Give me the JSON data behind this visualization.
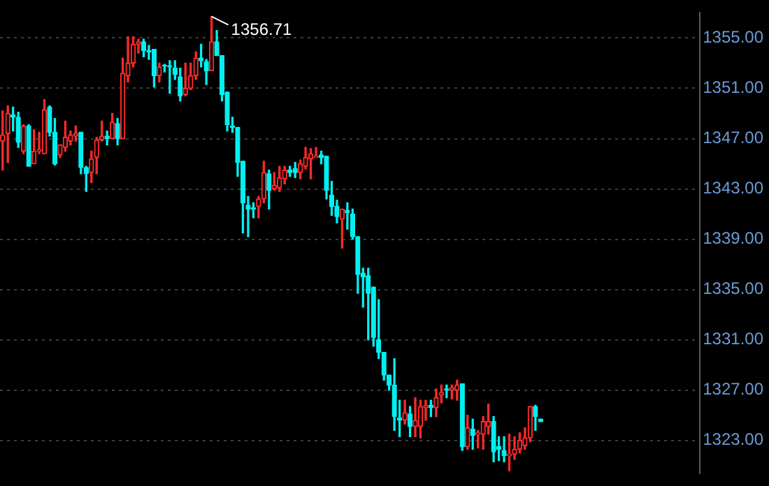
{
  "chart_data": {
    "type": "candlestick",
    "categories": [
      null,
      null,
      null,
      null,
      null,
      null,
      null,
      null,
      null,
      null,
      null,
      null,
      null,
      null,
      null,
      null,
      null,
      null,
      null,
      null,
      null,
      null,
      null,
      null,
      null,
      null,
      null,
      null,
      null,
      null,
      null,
      null,
      null,
      null,
      null,
      null,
      null,
      null,
      null,
      null,
      null,
      null,
      null,
      null,
      null,
      null,
      null,
      null,
      null,
      null,
      null,
      null,
      null,
      null,
      null,
      null,
      null,
      null,
      null,
      null,
      null,
      null,
      null,
      null,
      null,
      null,
      null,
      null,
      null,
      null,
      null,
      null,
      null,
      null,
      null,
      null,
      null,
      null,
      null,
      null,
      null,
      null,
      null,
      null,
      null,
      null,
      null,
      null,
      null,
      null,
      null,
      null,
      null,
      null,
      null,
      null,
      null,
      null,
      null,
      null,
      null,
      null,
      null,
      null,
      null,
      null,
      null,
      null,
      null,
      null,
      null,
      null,
      null,
      null,
      null,
      null,
      null,
      null,
      null,
      null,
      null,
      null,
      null,
      null,
      null,
      null,
      null,
      null,
      null,
      null,
      null,
      null,
      null,
      null
    ],
    "ohlc": [
      [
        1346.8,
        1349.2,
        1344.5,
        1347.3
      ],
      [
        1347.4,
        1349.6,
        1345.1,
        1349.0
      ],
      [
        1348.9,
        1349.5,
        1347.6,
        1348.7
      ],
      [
        1348.7,
        1349.1,
        1346.3,
        1346.7
      ],
      [
        1346.0,
        1348.1,
        1345.8,
        1348.0
      ],
      [
        1348.0,
        1348.1,
        1344.8,
        1344.8
      ],
      [
        1345.0,
        1347.7,
        1345.0,
        1346.0
      ],
      [
        1346.0,
        1347.5,
        1345.8,
        1346.1
      ],
      [
        1345.8,
        1350.1,
        1345.8,
        1349.3
      ],
      [
        1349.5,
        1349.6,
        1347.2,
        1347.5
      ],
      [
        1347.5,
        1348.6,
        1344.9,
        1345.0
      ],
      [
        1345.7,
        1346.5,
        1345.5,
        1346.5
      ],
      [
        1346.3,
        1348.4,
        1346.0,
        1347.1
      ],
      [
        1346.8,
        1347.6,
        1346.5,
        1347.3
      ],
      [
        1347.2,
        1348.0,
        1346.8,
        1347.4
      ],
      [
        1347.5,
        1347.5,
        1344.2,
        1344.7
      ],
      [
        1344.7,
        1344.8,
        1342.8,
        1344.2
      ],
      [
        1344.3,
        1346.0,
        1343.5,
        1345.4
      ],
      [
        1345.5,
        1347.1,
        1344.2,
        1346.9
      ],
      [
        1346.9,
        1348.4,
        1346.8,
        1347.2
      ],
      [
        1347.2,
        1347.6,
        1346.5,
        1347.0
      ],
      [
        1347.0,
        1349.0,
        1347.0,
        1348.3
      ],
      [
        1348.2,
        1348.6,
        1346.5,
        1347.0
      ],
      [
        1347.0,
        1353.4,
        1347.0,
        1352.2
      ],
      [
        1352.0,
        1355.1,
        1351.5,
        1353.0
      ],
      [
        1353.0,
        1355.1,
        1352.7,
        1354.5
      ],
      [
        1354.5,
        1354.9,
        1353.8,
        1354.7
      ],
      [
        1354.7,
        1354.9,
        1353.5,
        1354.0
      ],
      [
        1354.0,
        1354.4,
        1353.3,
        1353.9
      ],
      [
        1354.1,
        1354.1,
        1351.1,
        1352.0
      ],
      [
        1352.0,
        1353.0,
        1351.5,
        1352.7
      ],
      [
        1352.8,
        1352.9,
        1352.3,
        1352.8
      ],
      [
        1352.8,
        1353.2,
        1350.6,
        1352.7
      ],
      [
        1352.6,
        1353.2,
        1351.7,
        1352.1
      ],
      [
        1351.9,
        1352.6,
        1350.0,
        1350.4
      ],
      [
        1350.5,
        1353.0,
        1350.4,
        1351.0
      ],
      [
        1351.0,
        1353.0,
        1350.9,
        1352.0
      ],
      [
        1352.0,
        1353.9,
        1351.7,
        1353.4
      ],
      [
        1353.4,
        1354.5,
        1352.7,
        1353.2
      ],
      [
        1353.1,
        1353.3,
        1351.3,
        1352.4
      ],
      [
        1352.4,
        1356.71,
        1352.4,
        1354.7
      ],
      [
        1354.7,
        1355.6,
        1353.6,
        1353.6
      ],
      [
        1353.6,
        1353.6,
        1350.0,
        1350.5
      ],
      [
        1350.7,
        1350.7,
        1347.6,
        1348.1
      ],
      [
        1348.0,
        1348.7,
        1347.5,
        1347.9
      ],
      [
        1347.9,
        1347.9,
        1344.0,
        1345.1
      ],
      [
        1345.2,
        1345.2,
        1339.5,
        1341.9
      ],
      [
        1341.7,
        1342.4,
        1339.2,
        1341.4
      ],
      [
        1341.5,
        1341.9,
        1340.7,
        1341.4
      ],
      [
        1341.6,
        1342.4,
        1340.7,
        1342.2
      ],
      [
        1342.2,
        1345.2,
        1341.9,
        1344.3
      ],
      [
        1344.2,
        1344.5,
        1341.4,
        1342.9
      ],
      [
        1343.0,
        1344.3,
        1342.9,
        1343.3
      ],
      [
        1343.1,
        1344.8,
        1342.8,
        1343.9
      ],
      [
        1343.8,
        1344.8,
        1343.4,
        1344.5
      ],
      [
        1344.5,
        1344.8,
        1344.0,
        1344.3
      ],
      [
        1344.6,
        1345.1,
        1343.9,
        1344.3
      ],
      [
        1344.3,
        1345.3,
        1343.8,
        1345.0
      ],
      [
        1344.8,
        1346.3,
        1344.6,
        1345.5
      ],
      [
        1345.4,
        1346.2,
        1343.8,
        1345.8
      ],
      [
        1345.5,
        1346.3,
        1345.5,
        1345.6
      ],
      [
        1345.7,
        1346.0,
        1345.0,
        1345.5
      ],
      [
        1345.6,
        1345.6,
        1342.2,
        1342.9
      ],
      [
        1342.5,
        1343.6,
        1340.9,
        1341.6
      ],
      [
        1341.6,
        1342.1,
        1340.3,
        1340.8
      ],
      [
        1340.6,
        1341.4,
        1338.3,
        1341.4
      ],
      [
        1341.3,
        1341.9,
        1339.8,
        1341.1
      ],
      [
        1341.0,
        1341.4,
        1339.0,
        1339.2
      ],
      [
        1339.2,
        1339.2,
        1334.7,
        1336.2
      ],
      [
        1336.3,
        1336.7,
        1333.6,
        1336.0
      ],
      [
        1336.1,
        1336.7,
        1331.0,
        1334.7
      ],
      [
        1335.2,
        1335.2,
        1330.5,
        1331.2
      ],
      [
        1331.0,
        1334.2,
        1329.5,
        1330.0
      ],
      [
        1330.0,
        1330.0,
        1327.8,
        1328.2
      ],
      [
        1328.2,
        1328.2,
        1327.0,
        1327.4
      ],
      [
        1327.4,
        1329.5,
        1323.8,
        1324.9
      ],
      [
        1324.8,
        1326.2,
        1323.3,
        1324.6
      ],
      [
        1324.6,
        1326.2,
        1324.3,
        1325.2
      ],
      [
        1325.1,
        1325.7,
        1323.3,
        1324.1
      ],
      [
        1324.1,
        1326.4,
        1323.3,
        1324.6
      ],
      [
        1324.1,
        1326.2,
        1323.2,
        1325.7
      ],
      [
        1325.6,
        1326.2,
        1324.6,
        1325.8
      ],
      [
        1325.8,
        1326.2,
        1324.9,
        1325.6
      ],
      [
        1325.6,
        1327.1,
        1324.9,
        1326.4
      ],
      [
        1326.6,
        1327.4,
        1326.0,
        1326.8
      ],
      [
        1327.1,
        1327.4,
        1326.4,
        1327.0
      ],
      [
        1327.0,
        1327.4,
        1326.3,
        1327.2
      ],
      [
        1327.0,
        1327.8,
        1326.2,
        1327.4
      ],
      [
        1327.5,
        1327.5,
        1322.2,
        1322.5
      ],
      [
        1322.5,
        1325.0,
        1322.3,
        1324.0
      ],
      [
        1323.9,
        1324.7,
        1322.3,
        1323.4
      ],
      [
        1323.5,
        1323.8,
        1322.4,
        1323.6
      ],
      [
        1323.5,
        1324.9,
        1322.3,
        1324.5
      ],
      [
        1324.1,
        1325.9,
        1323.5,
        1324.5
      ],
      [
        1324.5,
        1324.9,
        1321.3,
        1322.1
      ],
      [
        1322.5,
        1323.3,
        1321.4,
        1322.3
      ],
      [
        1322.2,
        1323.3,
        1321.3,
        1321.8
      ],
      [
        1321.8,
        1323.5,
        1320.6,
        1321.9
      ],
      [
        1321.9,
        1323.3,
        1321.5,
        1322.3
      ],
      [
        1322.3,
        1323.6,
        1322.0,
        1323.0
      ],
      [
        1322.6,
        1324.0,
        1322.3,
        1323.2
      ],
      [
        1323.2,
        1325.7,
        1322.9,
        1325.7
      ],
      [
        1325.7,
        1325.8,
        1323.8,
        1324.9
      ],
      [
        1324.7,
        1324.7,
        1324.5,
        1324.5
      ],
      null,
      null,
      null,
      null,
      null,
      null,
      null,
      null,
      null,
      null,
      null,
      null,
      null,
      null,
      null,
      null,
      null,
      null,
      null,
      null,
      null,
      null,
      null,
      null,
      null,
      null,
      null,
      null,
      null,
      null
    ],
    "colors": [
      "#ff2a2a",
      "#ff2a2a",
      "#00f0f0",
      "#00f0f0",
      "#ff2a2a",
      "#00f0f0",
      "#ff2a2a",
      "#ff2a2a",
      "#ff2a2a",
      "#00f0f0",
      "#00f0f0",
      "#ff2a2a",
      "#ff2a2a",
      "#ff2a2a",
      "#ff2a2a",
      "#00f0f0",
      "#00f0f0",
      "#ff2a2a",
      "#ff2a2a",
      "#ff2a2a",
      "#00f0f0",
      "#ff2a2a",
      "#00f0f0",
      "#ff2a2a",
      "#ff2a2a",
      "#ff2a2a",
      "#ff2a2a",
      "#00f0f0",
      "#00f0f0",
      "#00f0f0",
      "#ff2a2a",
      "#00f0f0",
      "#00f0f0",
      "#00f0f0",
      "#00f0f0",
      "#ff2a2a",
      "#ff2a2a",
      "#ff2a2a",
      "#00f0f0",
      "#00f0f0",
      "#ff2a2a",
      "#00f0f0",
      "#00f0f0",
      "#00f0f0",
      "#00f0f0",
      "#00f0f0",
      "#00f0f0",
      "#00f0f0",
      "#00f0f0",
      "#ff2a2a",
      "#ff2a2a",
      "#00f0f0",
      "#ff2a2a",
      "#ff2a2a",
      "#ff2a2a",
      "#00f0f0",
      "#00f0f0",
      "#ff2a2a",
      "#ff2a2a",
      "#ff2a2a",
      "#ff2a2a",
      "#00f0f0",
      "#00f0f0",
      "#00f0f0",
      "#00f0f0",
      "#ff2a2a",
      "#00f0f0",
      "#00f0f0",
      "#00f0f0",
      "#00f0f0",
      "#00f0f0",
      "#00f0f0",
      "#00f0f0",
      "#00f0f0",
      "#00f0f0",
      "#00f0f0",
      "#00f0f0",
      "#ff2a2a",
      "#00f0f0",
      "#ff2a2a",
      "#ff2a2a",
      "#ff2a2a",
      "#00f0f0",
      "#ff2a2a",
      "#ff2a2a",
      "#00f0f0",
      "#ff2a2a",
      "#ff2a2a",
      "#00f0f0",
      "#ff2a2a",
      "#00f0f0",
      "#ff2a2a",
      "#ff2a2a",
      "#ff2a2a",
      "#00f0f0",
      "#00f0f0",
      "#00f0f0",
      "#ff2a2a",
      "#ff2a2a",
      "#ff2a2a",
      "#ff2a2a",
      "#ff2a2a",
      "#00f0f0",
      "#00f0f0",
      null,
      null,
      null,
      null,
      null,
      null,
      null,
      null,
      null,
      null,
      null,
      null,
      null,
      null,
      null,
      null,
      null,
      null,
      null,
      null,
      null,
      null,
      null,
      null,
      null,
      null,
      null,
      null,
      null,
      null
    ],
    "ylim": [
      1320.4,
      1357.0
    ],
    "yticks": [
      {
        "value": 1323,
        "label": "1323.00"
      },
      {
        "value": 1327,
        "label": "1327.00"
      },
      {
        "value": 1331,
        "label": "1331.00"
      },
      {
        "value": 1335,
        "label": "1335.00"
      },
      {
        "value": 1339,
        "label": "1339.00"
      },
      {
        "value": 1343,
        "label": "1343.00"
      },
      {
        "value": 1347,
        "label": "1347.00"
      },
      {
        "value": 1351,
        "label": "1351.00"
      },
      {
        "value": 1355,
        "label": "1355.00"
      }
    ],
    "grid": "y",
    "tick_labels": "y",
    "annotations": [
      "1356.71"
    ]
  }
}
